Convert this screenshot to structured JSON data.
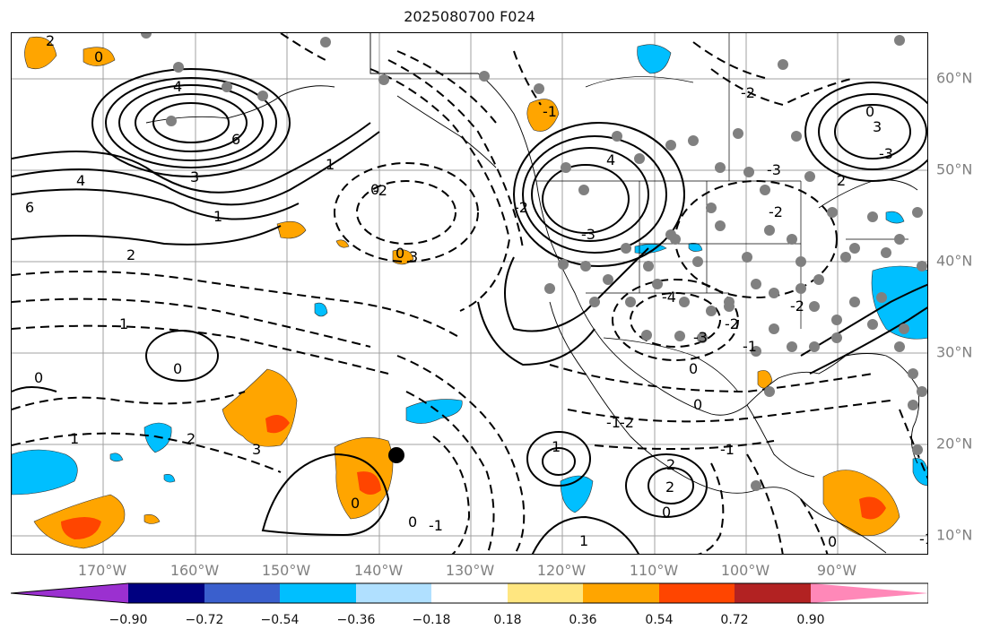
{
  "title": "2025080700 F024",
  "lat_labels": [
    "60°N",
    "50°N",
    "40°N",
    "30°N",
    "20°N",
    "10°N"
  ],
  "lon_labels": [
    "170°W",
    "160°W",
    "150°W",
    "140°W",
    "130°W",
    "120°W",
    "110°W",
    "100°W",
    "90°W"
  ],
  "colorbar": {
    "ticks": [
      "−0.90",
      "−0.72",
      "−0.54",
      "−0.36",
      "−0.18",
      "0.18",
      "0.36",
      "0.54",
      "0.72",
      "0.90"
    ],
    "colors": [
      "#9b30d0",
      "#000080",
      "#3a5fcd",
      "#00bfff",
      "#b0e0ff",
      "#ffffff",
      "#ffe680",
      "#ffa500",
      "#ff4500",
      "#b22222",
      "#ff88b8"
    ]
  },
  "fill_colors": {
    "orange": "#ffa500",
    "red": "#ff4500",
    "cyan": "#00bfff",
    "light_blue": "#b0e0ff",
    "dots": "#808080"
  },
  "contour_labels": [
    "2",
    "0",
    "4",
    "6",
    "3",
    "4",
    "6",
    "1",
    "2",
    "1",
    "0",
    "0",
    "1",
    "2",
    "3",
    "0",
    "1",
    "0",
    "-2",
    "-1",
    "-2",
    "-3",
    "-4",
    "-3",
    "-2",
    "-1",
    "0",
    "-1",
    "1",
    "2",
    "0",
    "4",
    "3",
    "2",
    "0",
    "-2",
    "-3",
    "-2",
    "-2",
    "0",
    "3",
    "0",
    "2",
    "1",
    "-1",
    "-2",
    "-1",
    "0",
    "1",
    "-3",
    "-1",
    "0"
  ],
  "marker_label": "tropical cyclone position marker"
}
